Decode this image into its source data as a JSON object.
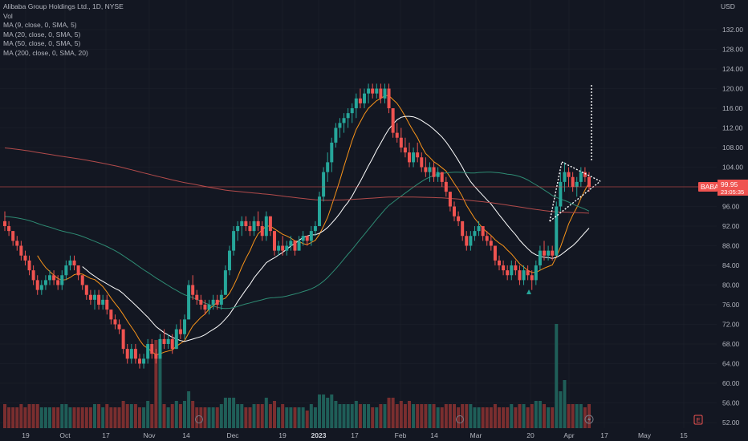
{
  "legend": {
    "symbol": "Alibaba Group Holdings Ltd., 1D, NYSE",
    "volume": "Vol",
    "ma9": "MA (9, close, 0, SMA, 5)",
    "ma20": "MA (20, close, 0, SMA, 5)",
    "ma50": "MA (50, close, 0, SMA, 5)",
    "ma200": "MA (200, close, 0, SMA, 20)"
  },
  "price_axis": {
    "currency": "USD",
    "ticks": [
      "132.00",
      "128.00",
      "124.00",
      "120.00",
      "116.00",
      "112.00",
      "108.00",
      "104.00",
      "100.00",
      "96.00",
      "92.00",
      "88.00",
      "84.00",
      "80.00",
      "76.00",
      "72.00",
      "68.00",
      "64.00",
      "60.00",
      "56.00",
      "52.00"
    ],
    "last_price": {
      "ticker": "BABA",
      "price": "99.95",
      "countdown": "23:05:35"
    }
  },
  "time_axis": {
    "ticks": [
      "19",
      "Oct",
      "17",
      "Nov",
      "14",
      "Dec",
      "19",
      "2023",
      "17",
      "Feb",
      "14",
      "Mar",
      "20",
      "Apr",
      "17",
      "May",
      "15"
    ]
  },
  "colors": {
    "background": "#131722",
    "up": "#26a69a",
    "down": "#ef5350",
    "ma9": "#f7931a",
    "ma20": "#ffffff",
    "ma50": "#2e8b73",
    "ma200": "#b24b4b",
    "grid": "#1e222d",
    "pattern": "#ffffff"
  },
  "chart_data": {
    "type": "candlestick",
    "title": "Alibaba Group Holdings Ltd., 1D, NYSE",
    "ylim": [
      50,
      136
    ],
    "y_axis_unit": "USD",
    "grid": true,
    "candles": [
      {
        "x": "2022-09-13",
        "o": 93,
        "h": 95,
        "l": 91,
        "c": 92
      },
      {
        "x": "2022-09-14",
        "o": 92,
        "h": 93,
        "l": 90,
        "c": 91
      },
      {
        "x": "2022-09-15",
        "o": 91,
        "h": 91,
        "l": 88,
        "c": 89
      },
      {
        "x": "2022-09-16",
        "o": 89,
        "h": 90,
        "l": 87,
        "c": 88
      },
      {
        "x": "2022-09-19",
        "o": 88,
        "h": 89,
        "l": 85,
        "c": 86
      },
      {
        "x": "2022-09-20",
        "o": 86,
        "h": 87,
        "l": 84,
        "c": 85
      },
      {
        "x": "2022-09-21",
        "o": 85,
        "h": 86,
        "l": 82,
        "c": 83
      },
      {
        "x": "2022-09-22",
        "o": 83,
        "h": 84,
        "l": 80,
        "c": 81
      },
      {
        "x": "2022-09-23",
        "o": 81,
        "h": 82,
        "l": 78,
        "c": 79
      },
      {
        "x": "2022-09-26",
        "o": 79,
        "h": 81,
        "l": 78,
        "c": 80
      },
      {
        "x": "2022-09-27",
        "o": 80,
        "h": 82,
        "l": 79,
        "c": 81
      },
      {
        "x": "2022-09-28",
        "o": 81,
        "h": 83,
        "l": 80,
        "c": 82
      },
      {
        "x": "2022-09-29",
        "o": 82,
        "h": 83,
        "l": 80,
        "c": 81
      },
      {
        "x": "2022-09-30",
        "o": 81,
        "h": 82,
        "l": 79,
        "c": 80
      },
      {
        "x": "2022-10-03",
        "o": 80,
        "h": 83,
        "l": 79,
        "c": 82
      },
      {
        "x": "2022-10-04",
        "o": 82,
        "h": 85,
        "l": 81,
        "c": 84
      },
      {
        "x": "2022-10-05",
        "o": 84,
        "h": 86,
        "l": 83,
        "c": 85
      },
      {
        "x": "2022-10-06",
        "o": 85,
        "h": 86,
        "l": 83,
        "c": 84
      },
      {
        "x": "2022-10-07",
        "o": 84,
        "h": 84,
        "l": 81,
        "c": 82
      },
      {
        "x": "2022-10-10",
        "o": 82,
        "h": 82,
        "l": 79,
        "c": 80
      },
      {
        "x": "2022-10-11",
        "o": 80,
        "h": 80,
        "l": 77,
        "c": 78
      },
      {
        "x": "2022-10-12",
        "o": 78,
        "h": 79,
        "l": 76,
        "c": 77
      },
      {
        "x": "2022-10-13",
        "o": 77,
        "h": 79,
        "l": 75,
        "c": 78
      },
      {
        "x": "2022-10-14",
        "o": 78,
        "h": 79,
        "l": 75,
        "c": 76
      },
      {
        "x": "2022-10-17",
        "o": 76,
        "h": 78,
        "l": 75,
        "c": 77
      },
      {
        "x": "2022-10-18",
        "o": 77,
        "h": 78,
        "l": 74,
        "c": 75
      },
      {
        "x": "2022-10-19",
        "o": 75,
        "h": 75,
        "l": 72,
        "c": 73
      },
      {
        "x": "2022-10-20",
        "o": 73,
        "h": 74,
        "l": 71,
        "c": 72
      },
      {
        "x": "2022-10-21",
        "o": 72,
        "h": 73,
        "l": 70,
        "c": 71
      },
      {
        "x": "2022-10-24",
        "o": 71,
        "h": 71,
        "l": 66,
        "c": 67
      },
      {
        "x": "2022-10-25",
        "o": 67,
        "h": 68,
        "l": 64,
        "c": 65
      },
      {
        "x": "2022-10-26",
        "o": 65,
        "h": 68,
        "l": 64,
        "c": 67
      },
      {
        "x": "2022-10-27",
        "o": 67,
        "h": 68,
        "l": 64,
        "c": 65
      },
      {
        "x": "2022-10-28",
        "o": 65,
        "h": 66,
        "l": 63,
        "c": 64
      },
      {
        "x": "2022-10-31",
        "o": 64,
        "h": 66,
        "l": 63,
        "c": 65
      },
      {
        "x": "2022-11-01",
        "o": 65,
        "h": 69,
        "l": 64,
        "c": 68
      },
      {
        "x": "2022-11-02",
        "o": 68,
        "h": 69,
        "l": 65,
        "c": 66
      },
      {
        "x": "2022-11-03",
        "o": 66,
        "h": 67,
        "l": 64,
        "c": 65
      },
      {
        "x": "2022-11-04",
        "o": 65,
        "h": 70,
        "l": 65,
        "c": 69
      },
      {
        "x": "2022-11-07",
        "o": 69,
        "h": 71,
        "l": 67,
        "c": 68
      },
      {
        "x": "2022-11-08",
        "o": 68,
        "h": 70,
        "l": 67,
        "c": 69
      },
      {
        "x": "2022-11-09",
        "o": 69,
        "h": 70,
        "l": 66,
        "c": 67
      },
      {
        "x": "2022-11-10",
        "o": 67,
        "h": 72,
        "l": 67,
        "c": 71
      },
      {
        "x": "2022-11-11",
        "o": 71,
        "h": 73,
        "l": 69,
        "c": 70
      },
      {
        "x": "2022-11-14",
        "o": 70,
        "h": 74,
        "l": 69,
        "c": 73
      },
      {
        "x": "2022-11-15",
        "o": 73,
        "h": 81,
        "l": 73,
        "c": 80
      },
      {
        "x": "2022-11-16",
        "o": 80,
        "h": 82,
        "l": 77,
        "c": 78
      },
      {
        "x": "2022-11-17",
        "o": 78,
        "h": 79,
        "l": 76,
        "c": 77
      },
      {
        "x": "2022-11-18",
        "o": 77,
        "h": 78,
        "l": 75,
        "c": 76
      },
      {
        "x": "2022-11-21",
        "o": 76,
        "h": 77,
        "l": 74,
        "c": 75
      },
      {
        "x": "2022-11-22",
        "o": 75,
        "h": 77,
        "l": 74,
        "c": 76
      },
      {
        "x": "2022-11-23",
        "o": 76,
        "h": 78,
        "l": 75,
        "c": 77
      },
      {
        "x": "2022-11-25",
        "o": 77,
        "h": 78,
        "l": 75,
        "c": 76
      },
      {
        "x": "2022-11-28",
        "o": 76,
        "h": 79,
        "l": 75,
        "c": 78
      },
      {
        "x": "2022-11-29",
        "o": 78,
        "h": 84,
        "l": 78,
        "c": 83
      },
      {
        "x": "2022-11-30",
        "o": 83,
        "h": 88,
        "l": 82,
        "c": 87
      },
      {
        "x": "2022-12-01",
        "o": 87,
        "h": 92,
        "l": 86,
        "c": 91
      },
      {
        "x": "2022-12-02",
        "o": 91,
        "h": 93,
        "l": 89,
        "c": 92
      },
      {
        "x": "2022-12-05",
        "o": 92,
        "h": 94,
        "l": 90,
        "c": 93
      },
      {
        "x": "2022-12-06",
        "o": 93,
        "h": 94,
        "l": 91,
        "c": 92
      },
      {
        "x": "2022-12-07",
        "o": 92,
        "h": 93,
        "l": 90,
        "c": 91
      },
      {
        "x": "2022-12-08",
        "o": 91,
        "h": 94,
        "l": 90,
        "c": 93
      },
      {
        "x": "2022-12-09",
        "o": 93,
        "h": 95,
        "l": 91,
        "c": 92
      },
      {
        "x": "2022-12-12",
        "o": 92,
        "h": 93,
        "l": 89,
        "c": 90
      },
      {
        "x": "2022-12-13",
        "o": 90,
        "h": 95,
        "l": 89,
        "c": 94
      },
      {
        "x": "2022-12-14",
        "o": 94,
        "h": 94,
        "l": 90,
        "c": 91
      },
      {
        "x": "2022-12-15",
        "o": 91,
        "h": 91,
        "l": 86,
        "c": 87
      },
      {
        "x": "2022-12-16",
        "o": 87,
        "h": 89,
        "l": 86,
        "c": 88
      },
      {
        "x": "2022-12-19",
        "o": 88,
        "h": 90,
        "l": 86,
        "c": 87
      },
      {
        "x": "2022-12-20",
        "o": 87,
        "h": 89,
        "l": 86,
        "c": 88
      },
      {
        "x": "2022-12-21",
        "o": 88,
        "h": 90,
        "l": 87,
        "c": 89
      },
      {
        "x": "2022-12-22",
        "o": 89,
        "h": 89,
        "l": 86,
        "c": 87
      },
      {
        "x": "2022-12-23",
        "o": 87,
        "h": 90,
        "l": 87,
        "c": 89
      },
      {
        "x": "2022-12-27",
        "o": 89,
        "h": 91,
        "l": 88,
        "c": 90
      },
      {
        "x": "2022-12-28",
        "o": 90,
        "h": 90,
        "l": 88,
        "c": 89
      },
      {
        "x": "2022-12-29",
        "o": 89,
        "h": 92,
        "l": 88,
        "c": 91
      },
      {
        "x": "2022-12-30",
        "o": 91,
        "h": 93,
        "l": 90,
        "c": 92
      },
      {
        "x": "2023-01-03",
        "o": 92,
        "h": 99,
        "l": 92,
        "c": 98
      },
      {
        "x": "2023-01-04",
        "o": 98,
        "h": 104,
        "l": 97,
        "c": 103
      },
      {
        "x": "2023-01-05",
        "o": 103,
        "h": 107,
        "l": 101,
        "c": 105
      },
      {
        "x": "2023-01-06",
        "o": 105,
        "h": 110,
        "l": 103,
        "c": 109
      },
      {
        "x": "2023-01-09",
        "o": 109,
        "h": 113,
        "l": 108,
        "c": 112
      },
      {
        "x": "2023-01-10",
        "o": 112,
        "h": 114,
        "l": 110,
        "c": 113
      },
      {
        "x": "2023-01-11",
        "o": 113,
        "h": 115,
        "l": 111,
        "c": 114
      },
      {
        "x": "2023-01-12",
        "o": 114,
        "h": 116,
        "l": 112,
        "c": 115
      },
      {
        "x": "2023-01-13",
        "o": 115,
        "h": 117,
        "l": 113,
        "c": 116
      },
      {
        "x": "2023-01-17",
        "o": 116,
        "h": 119,
        "l": 114,
        "c": 118
      },
      {
        "x": "2023-01-18",
        "o": 118,
        "h": 120,
        "l": 116,
        "c": 117
      },
      {
        "x": "2023-01-19",
        "o": 117,
        "h": 120,
        "l": 116,
        "c": 119
      },
      {
        "x": "2023-01-20",
        "o": 119,
        "h": 121,
        "l": 117,
        "c": 120
      },
      {
        "x": "2023-01-23",
        "o": 120,
        "h": 121,
        "l": 118,
        "c": 119
      },
      {
        "x": "2023-01-24",
        "o": 119,
        "h": 121,
        "l": 118,
        "c": 120
      },
      {
        "x": "2023-01-25",
        "o": 120,
        "h": 121,
        "l": 117,
        "c": 118
      },
      {
        "x": "2023-01-26",
        "o": 118,
        "h": 121,
        "l": 117,
        "c": 120
      },
      {
        "x": "2023-01-27",
        "o": 120,
        "h": 121,
        "l": 115,
        "c": 116
      },
      {
        "x": "2023-01-30",
        "o": 116,
        "h": 116,
        "l": 110,
        "c": 111
      },
      {
        "x": "2023-01-31",
        "o": 111,
        "h": 113,
        "l": 109,
        "c": 110
      },
      {
        "x": "2023-02-01",
        "o": 110,
        "h": 112,
        "l": 107,
        "c": 108
      },
      {
        "x": "2023-02-02",
        "o": 108,
        "h": 110,
        "l": 106,
        "c": 107
      },
      {
        "x": "2023-02-03",
        "o": 107,
        "h": 109,
        "l": 104,
        "c": 105
      },
      {
        "x": "2023-02-06",
        "o": 105,
        "h": 108,
        "l": 104,
        "c": 107
      },
      {
        "x": "2023-02-07",
        "o": 107,
        "h": 109,
        "l": 105,
        "c": 106
      },
      {
        "x": "2023-02-08",
        "o": 106,
        "h": 107,
        "l": 103,
        "c": 104
      },
      {
        "x": "2023-02-09",
        "o": 104,
        "h": 106,
        "l": 102,
        "c": 103
      },
      {
        "x": "2023-02-10",
        "o": 103,
        "h": 105,
        "l": 101,
        "c": 104
      },
      {
        "x": "2023-02-13",
        "o": 104,
        "h": 105,
        "l": 101,
        "c": 102
      },
      {
        "x": "2023-02-14",
        "o": 102,
        "h": 104,
        "l": 101,
        "c": 103
      },
      {
        "x": "2023-02-15",
        "o": 103,
        "h": 103,
        "l": 100,
        "c": 101
      },
      {
        "x": "2023-02-16",
        "o": 101,
        "h": 102,
        "l": 98,
        "c": 99
      },
      {
        "x": "2023-02-17",
        "o": 99,
        "h": 99,
        "l": 95,
        "c": 96
      },
      {
        "x": "2023-02-21",
        "o": 96,
        "h": 97,
        "l": 93,
        "c": 94
      },
      {
        "x": "2023-02-22",
        "o": 94,
        "h": 95,
        "l": 92,
        "c": 93
      },
      {
        "x": "2023-02-23",
        "o": 93,
        "h": 93,
        "l": 89,
        "c": 90
      },
      {
        "x": "2023-02-24",
        "o": 90,
        "h": 91,
        "l": 87,
        "c": 88
      },
      {
        "x": "2023-02-27",
        "o": 88,
        "h": 91,
        "l": 87,
        "c": 90
      },
      {
        "x": "2023-02-28",
        "o": 90,
        "h": 92,
        "l": 89,
        "c": 91
      },
      {
        "x": "2023-03-01",
        "o": 91,
        "h": 93,
        "l": 90,
        "c": 92
      },
      {
        "x": "2023-03-02",
        "o": 92,
        "h": 92,
        "l": 89,
        "c": 90
      },
      {
        "x": "2023-03-03",
        "o": 90,
        "h": 91,
        "l": 88,
        "c": 89
      },
      {
        "x": "2023-03-06",
        "o": 89,
        "h": 90,
        "l": 87,
        "c": 88
      },
      {
        "x": "2023-03-07",
        "o": 88,
        "h": 88,
        "l": 84,
        "c": 85
      },
      {
        "x": "2023-03-08",
        "o": 85,
        "h": 86,
        "l": 83,
        "c": 84
      },
      {
        "x": "2023-03-09",
        "o": 84,
        "h": 85,
        "l": 82,
        "c": 83
      },
      {
        "x": "2023-03-10",
        "o": 83,
        "h": 84,
        "l": 81,
        "c": 82
      },
      {
        "x": "2023-03-13",
        "o": 82,
        "h": 85,
        "l": 81,
        "c": 84
      },
      {
        "x": "2023-03-14",
        "o": 84,
        "h": 85,
        "l": 82,
        "c": 83
      },
      {
        "x": "2023-03-15",
        "o": 83,
        "h": 84,
        "l": 80,
        "c": 81
      },
      {
        "x": "2023-03-16",
        "o": 81,
        "h": 84,
        "l": 80,
        "c": 83
      },
      {
        "x": "2023-03-17",
        "o": 83,
        "h": 84,
        "l": 81,
        "c": 82
      },
      {
        "x": "2023-03-20",
        "o": 82,
        "h": 83,
        "l": 79,
        "c": 81
      },
      {
        "x": "2023-03-21",
        "o": 81,
        "h": 85,
        "l": 80,
        "c": 84
      },
      {
        "x": "2023-03-22",
        "o": 84,
        "h": 88,
        "l": 83,
        "c": 87
      },
      {
        "x": "2023-03-23",
        "o": 87,
        "h": 89,
        "l": 85,
        "c": 86
      },
      {
        "x": "2023-03-24",
        "o": 86,
        "h": 88,
        "l": 85,
        "c": 87
      },
      {
        "x": "2023-03-27",
        "o": 87,
        "h": 88,
        "l": 85,
        "c": 86
      },
      {
        "x": "2023-03-28",
        "o": 86,
        "h": 97,
        "l": 86,
        "c": 96
      },
      {
        "x": "2023-03-29",
        "o": 96,
        "h": 103,
        "l": 95,
        "c": 101
      },
      {
        "x": "2023-03-30",
        "o": 101,
        "h": 105,
        "l": 99,
        "c": 103
      },
      {
        "x": "2023-03-31",
        "o": 103,
        "h": 104,
        "l": 100,
        "c": 102
      },
      {
        "x": "2023-04-03",
        "o": 102,
        "h": 103,
        "l": 99,
        "c": 100
      },
      {
        "x": "2023-04-04",
        "o": 100,
        "h": 102,
        "l": 98,
        "c": 101
      },
      {
        "x": "2023-04-05",
        "o": 101,
        "h": 104,
        "l": 100,
        "c": 103
      },
      {
        "x": "2023-04-06",
        "o": 103,
        "h": 104,
        "l": 101,
        "c": 102
      },
      {
        "x": "2023-04-10",
        "o": 102,
        "h": 103,
        "l": 99,
        "c": 99.95
      }
    ]
  }
}
